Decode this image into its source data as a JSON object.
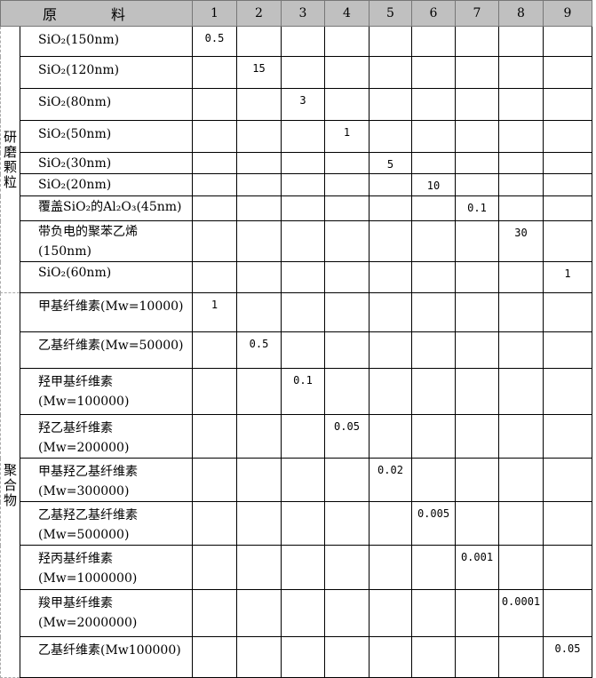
{
  "header": {
    "material_label": "原 料",
    "columns": [
      "1",
      "2",
      "3",
      "4",
      "5",
      "6",
      "7",
      "8",
      "9"
    ]
  },
  "groups": [
    {
      "label": "研磨颗粒",
      "rows": [
        {
          "name": "SiO₂(150nm)",
          "values": [
            "0.5",
            "",
            "",
            "",
            "",
            "",
            "",
            "",
            ""
          ]
        },
        {
          "name": "SiO₂(120nm)",
          "values": [
            "",
            "15",
            "",
            "",
            "",
            "",
            "",
            "",
            ""
          ]
        },
        {
          "name": "SiO₂(80nm)",
          "values": [
            "",
            "",
            "3",
            "",
            "",
            "",
            "",
            "",
            ""
          ]
        },
        {
          "name": "SiO₂(50nm)",
          "values": [
            "",
            "",
            "",
            "1",
            "",
            "",
            "",
            "",
            ""
          ]
        },
        {
          "name": "SiO₂(30nm)",
          "values": [
            "",
            "",
            "",
            "",
            "5",
            "",
            "",
            "",
            ""
          ]
        },
        {
          "name": "SiO₂(20nm)",
          "values": [
            "",
            "",
            "",
            "",
            "",
            "10",
            "",
            "",
            ""
          ]
        },
        {
          "name": "覆盖SiO₂的Al₂O₃(45nm)",
          "values": [
            "",
            "",
            "",
            "",
            "",
            "",
            "0.1",
            "",
            ""
          ]
        },
        {
          "name": "带负电的聚苯乙烯(150nm)",
          "values": [
            "",
            "",
            "",
            "",
            "",
            "",
            "",
            "30",
            ""
          ]
        },
        {
          "name": "SiO₂(60nm)",
          "values": [
            "",
            "",
            "",
            "",
            "",
            "",
            "",
            "",
            "1"
          ]
        }
      ]
    },
    {
      "label": "聚合物",
      "rows": [
        {
          "name": "甲基纤维素(Mw=10000)",
          "values": [
            "1",
            "",
            "",
            "",
            "",
            "",
            "",
            "",
            ""
          ]
        },
        {
          "name": "乙基纤维素(Mw=50000)",
          "values": [
            "",
            "0.5",
            "",
            "",
            "",
            "",
            "",
            "",
            ""
          ]
        },
        {
          "name": "羟甲基纤维素(Mw=100000)",
          "values": [
            "",
            "",
            "0.1",
            "",
            "",
            "",
            "",
            "",
            ""
          ]
        },
        {
          "name": "羟乙基纤维素(Mw=200000)",
          "values": [
            "",
            "",
            "",
            "0.05",
            "",
            "",
            "",
            "",
            ""
          ]
        },
        {
          "name": "甲基羟乙基纤维素(Mw=300000)",
          "values": [
            "",
            "",
            "",
            "",
            "0.02",
            "",
            "",
            "",
            ""
          ]
        },
        {
          "name": "乙基羟乙基纤维素(Mw=500000)",
          "values": [
            "",
            "",
            "",
            "",
            "",
            "0.005",
            "",
            "",
            ""
          ]
        },
        {
          "name": "羟丙基纤维素(Mw=1000000)",
          "values": [
            "",
            "",
            "",
            "",
            "",
            "",
            "0.001",
            "",
            ""
          ]
        },
        {
          "name": "羧甲基纤维素(Mw=2000000)",
          "values": [
            "",
            "",
            "",
            "",
            "",
            "",
            "",
            "0.0001",
            ""
          ]
        },
        {
          "name": "乙基纤维素(Mw100000)",
          "values": [
            "",
            "",
            "",
            "",
            "",
            "",
            "",
            "",
            "0.05"
          ]
        }
      ]
    }
  ]
}
